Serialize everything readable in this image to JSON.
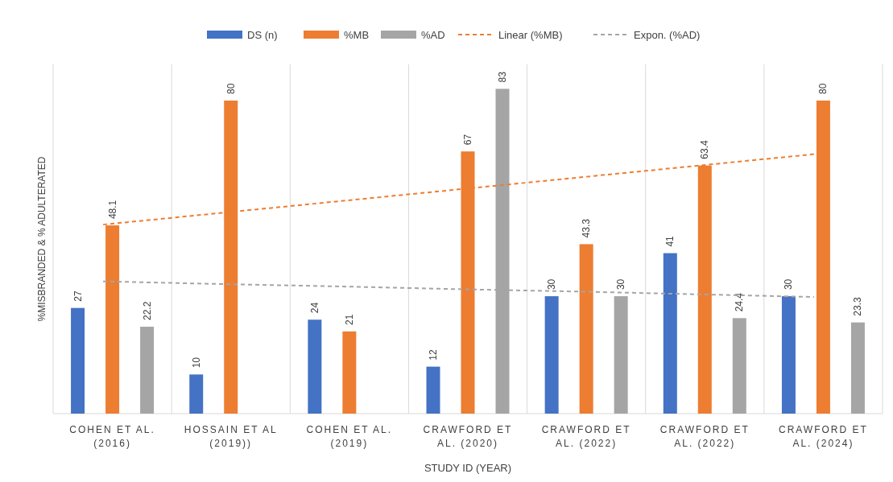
{
  "chart_data": {
    "type": "bar",
    "xlabel": "STUDY ID (YEAR)",
    "ylabel": "%MISBRANDED & % ADULTERATED",
    "categories": [
      "COHEN ET AL. (2016)",
      "HOSSAIN ET AL (2019))",
      "COHEN ET AL. (2019)",
      "CRAWFORD ET AL. (2020)",
      "CRAWFORD ET AL. (2022)",
      "CRAWFORD ET AL. (2022)",
      "CRAWFORD ET AL. (2024)"
    ],
    "series": [
      {
        "name": "DS (n)",
        "color": "#4472c4",
        "values": [
          27,
          10,
          24,
          12,
          30,
          41,
          30
        ],
        "value_labels": [
          "27",
          "10",
          "24",
          "12",
          "30",
          "41",
          "30"
        ]
      },
      {
        "name": "%MB",
        "color": "#ed7d31",
        "values": [
          48.1,
          80,
          21,
          67,
          43.3,
          63.4,
          80
        ],
        "value_labels": [
          "48.1",
          "80",
          "21",
          "67",
          "43.3",
          "63.4",
          "80"
        ]
      },
      {
        "name": "%AD",
        "color": "#a5a5a5",
        "values": [
          22.2,
          null,
          null,
          83,
          30,
          24.4,
          23.3
        ],
        "value_labels": [
          "22.2",
          null,
          null,
          "83",
          "30",
          "24.4",
          "23.3"
        ]
      },
      {
        "name": "Linear (%MB)",
        "type": "line",
        "line_style": "dashed",
        "color": "#ed7d31",
        "values": [
          48.3,
          51.3,
          54.3,
          57.3,
          60.3,
          63.3,
          66.3
        ]
      },
      {
        "name": "Expon. (%AD)",
        "type": "line",
        "line_style": "dashed",
        "color": "#a5a5a5",
        "values": [
          33.8,
          33.1,
          32.5,
          31.8,
          31.2,
          30.5,
          29.8
        ]
      }
    ],
    "grid": "x",
    "legend": "top"
  }
}
